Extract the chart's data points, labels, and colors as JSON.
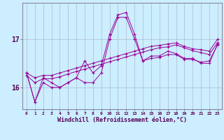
{
  "xlabel": "Windchill (Refroidissement éolien,°C)",
  "bg_color": "#cceeff",
  "line_color": "#990099",
  "grid_color": "#aabbcc",
  "hours": [
    0,
    1,
    2,
    3,
    4,
    5,
    6,
    7,
    8,
    9,
    10,
    11,
    12,
    13,
    14,
    15,
    16,
    17,
    18,
    19,
    20,
    21,
    22,
    23
  ],
  "line1": [
    16.3,
    15.7,
    16.2,
    16.1,
    16.0,
    16.1,
    16.2,
    16.55,
    16.3,
    16.45,
    17.1,
    17.5,
    17.55,
    17.1,
    16.55,
    16.65,
    16.65,
    16.75,
    16.7,
    16.6,
    16.6,
    16.5,
    16.5,
    16.9
  ],
  "line2": [
    16.3,
    16.2,
    16.25,
    16.25,
    16.3,
    16.35,
    16.4,
    16.45,
    16.5,
    16.55,
    16.6,
    16.65,
    16.7,
    16.75,
    16.8,
    16.85,
    16.87,
    16.9,
    16.92,
    16.85,
    16.8,
    16.78,
    16.75,
    17.0
  ],
  "line3": [
    16.25,
    16.1,
    16.18,
    16.18,
    16.22,
    16.28,
    16.33,
    16.38,
    16.43,
    16.48,
    16.53,
    16.58,
    16.63,
    16.68,
    16.73,
    16.78,
    16.82,
    16.84,
    16.88,
    16.82,
    16.76,
    16.72,
    16.68,
    16.93
  ],
  "line4": [
    16.3,
    15.7,
    16.1,
    16.0,
    16.0,
    16.1,
    16.2,
    16.1,
    16.1,
    16.3,
    17.0,
    17.45,
    17.45,
    17.0,
    16.55,
    16.6,
    16.62,
    16.68,
    16.68,
    16.58,
    16.58,
    16.52,
    16.55,
    16.88
  ],
  "yticks": [
    16,
    17
  ],
  "ylim": [
    15.55,
    17.75
  ],
  "xlim": [
    -0.5,
    23.5
  ]
}
